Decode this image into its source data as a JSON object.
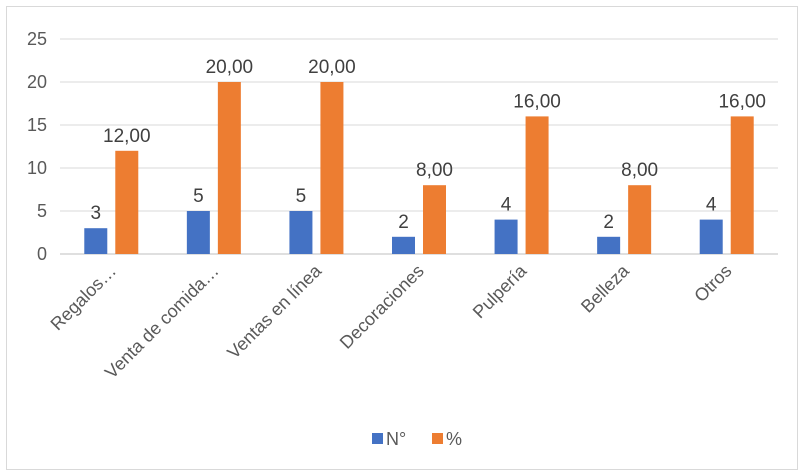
{
  "chart_data": {
    "type": "bar",
    "title": "",
    "xlabel": "",
    "ylabel": "",
    "ylim": [
      0,
      25
    ],
    "yticks": [
      0,
      5,
      10,
      15,
      20,
      25
    ],
    "grid": true,
    "legend_position": "bottom",
    "categories": [
      "Regalos…",
      "Venta de comida…",
      "Ventas en línea",
      "Decoraciones",
      "Pulpería",
      "Belleza",
      "Otros"
    ],
    "series": [
      {
        "name": "N°",
        "color": "#4472c4",
        "values": [
          3,
          5,
          5,
          2,
          4,
          2,
          4
        ],
        "labels": [
          "3",
          "5",
          "5",
          "2",
          "4",
          "2",
          "4"
        ]
      },
      {
        "name": "%",
        "color": "#ed7d31",
        "values": [
          12,
          20,
          20,
          8,
          16,
          8,
          16
        ],
        "labels": [
          "12,00",
          "20,00",
          "20,00",
          "8,00",
          "16,00",
          "8,00",
          "16,00"
        ]
      }
    ]
  }
}
